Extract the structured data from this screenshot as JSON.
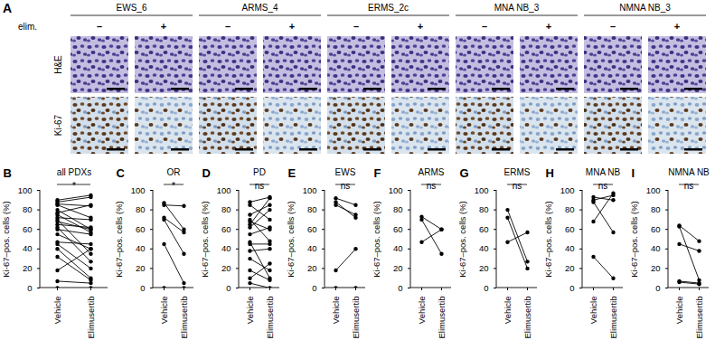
{
  "panel_a": {
    "label": "A",
    "treatment_label": "elim.",
    "treatments": [
      "–",
      "+"
    ],
    "samples": [
      "EWS_6",
      "ARMS_4",
      "ERMS_2c",
      "MNA NB_3",
      "NMNA NB_3"
    ],
    "stains": [
      "H&E",
      "Ki-67"
    ]
  },
  "chart_data": [
    {
      "type": "line",
      "panel": "B",
      "title": "all PDXs",
      "annotation": "*",
      "categories": [
        "Vehicle",
        "Elimusertib"
      ],
      "ylabel": "Ki-67–pos. cells (%)",
      "ylim": [
        0,
        100
      ],
      "yticks": [
        0,
        20,
        40,
        60,
        80,
        100
      ],
      "color": "#000000",
      "marker": "circle",
      "series": [
        {
          "values": [
            90,
            95
          ]
        },
        {
          "values": [
            88,
            93
          ]
        },
        {
          "values": [
            86,
            84
          ]
        },
        {
          "values": [
            85,
            72
          ]
        },
        {
          "values": [
            80,
            60
          ]
        },
        {
          "values": [
            77,
            85
          ]
        },
        {
          "values": [
            75,
            57
          ]
        },
        {
          "values": [
            72,
            70
          ]
        },
        {
          "values": [
            70,
            35
          ]
        },
        {
          "values": [
            68,
            60
          ]
        },
        {
          "values": [
            65,
            62
          ]
        },
        {
          "values": [
            62,
            27
          ]
        },
        {
          "values": [
            60,
            55
          ]
        },
        {
          "values": [
            55,
            40
          ]
        },
        {
          "values": [
            47,
            45
          ]
        },
        {
          "values": [
            45,
            20
          ]
        },
        {
          "values": [
            40,
            10
          ]
        },
        {
          "values": [
            32,
            8
          ]
        },
        {
          "values": [
            18,
            40
          ]
        },
        {
          "values": [
            7,
            5
          ]
        },
        {
          "values": [
            0,
            0
          ]
        }
      ]
    },
    {
      "type": "line",
      "panel": "C",
      "title": "OR",
      "annotation": "*",
      "categories": [
        "Vehicle",
        "Elimusertib"
      ],
      "ylabel": "Ki-67–pos. cells (%)",
      "ylim": [
        0,
        100
      ],
      "yticks": [
        0,
        20,
        40,
        60,
        80,
        100
      ],
      "color": "#000000",
      "marker": "circle",
      "series": [
        {
          "values": [
            85,
            84
          ]
        },
        {
          "values": [
            87,
            60
          ]
        },
        {
          "values": [
            72,
            57
          ]
        },
        {
          "values": [
            70,
            35
          ]
        },
        {
          "values": [
            45,
            5
          ]
        },
        {
          "values": [
            0,
            0
          ]
        }
      ]
    },
    {
      "type": "line",
      "panel": "D",
      "title": "PD",
      "annotation": "ns",
      "categories": [
        "Vehicle",
        "Elimusertib"
      ],
      "ylabel": "Ki-67–pos. cells (%)",
      "ylim": [
        0,
        100
      ],
      "yticks": [
        0,
        20,
        40,
        60,
        80,
        100
      ],
      "color": "#000000",
      "marker": "circle",
      "series": [
        {
          "values": [
            88,
            93
          ]
        },
        {
          "values": [
            85,
            70
          ]
        },
        {
          "values": [
            75,
            85
          ]
        },
        {
          "values": [
            70,
            48
          ]
        },
        {
          "values": [
            68,
            60
          ]
        },
        {
          "values": [
            65,
            92
          ]
        },
        {
          "values": [
            62,
            80
          ]
        },
        {
          "values": [
            55,
            62
          ]
        },
        {
          "values": [
            47,
            10
          ]
        },
        {
          "values": [
            45,
            45
          ]
        },
        {
          "values": [
            38,
            40
          ]
        },
        {
          "values": [
            30,
            18
          ]
        },
        {
          "values": [
            18,
            8
          ]
        },
        {
          "values": [
            10,
            25
          ]
        },
        {
          "values": [
            5,
            0
          ]
        }
      ]
    },
    {
      "type": "line",
      "panel": "E",
      "title": "EWS",
      "annotation": "ns",
      "categories": [
        "Vehicle",
        "Elimusertib"
      ],
      "ylabel": "Ki-67–pos. cells (%)",
      "ylim": [
        0,
        100
      ],
      "yticks": [
        0,
        20,
        40,
        60,
        80,
        100
      ],
      "color": "#000000",
      "marker": "circle",
      "series": [
        {
          "values": [
            92,
            85
          ]
        },
        {
          "values": [
            88,
            72
          ]
        },
        {
          "values": [
            85,
            75
          ]
        },
        {
          "values": [
            18,
            40
          ]
        },
        {
          "values": [
            0,
            0
          ]
        }
      ]
    },
    {
      "type": "line",
      "panel": "F",
      "title": "ARMS",
      "annotation": "ns",
      "categories": [
        "Vehicle",
        "Elimusertib"
      ],
      "ylabel": "Ki-67–pos. cells (%)",
      "ylim": [
        0,
        100
      ],
      "yticks": [
        0,
        20,
        40,
        60,
        80,
        100
      ],
      "color": "#000000",
      "marker": "circle",
      "series": [
        {
          "values": [
            73,
            60
          ]
        },
        {
          "values": [
            70,
            35
          ]
        },
        {
          "values": [
            47,
            60
          ]
        }
      ]
    },
    {
      "type": "line",
      "panel": "G",
      "title": "ERMS",
      "annotation": "ns",
      "categories": [
        "Vehicle",
        "Elimusertib"
      ],
      "ylabel": "Ki-67–pos. cells (%)",
      "ylim": [
        0,
        100
      ],
      "yticks": [
        0,
        20,
        40,
        60,
        80,
        100
      ],
      "color": "#000000",
      "marker": "circle",
      "series": [
        {
          "values": [
            80,
            27
          ]
        },
        {
          "values": [
            72,
            20
          ]
        },
        {
          "values": [
            47,
            57
          ]
        }
      ]
    },
    {
      "type": "line",
      "panel": "H",
      "title": "MNA NB",
      "annotation": "ns",
      "categories": [
        "Vehicle",
        "Elimusertib"
      ],
      "ylabel": "Ki-67–pos. cells (%)",
      "ylim": [
        0,
        100
      ],
      "yticks": [
        0,
        20,
        40,
        60,
        80,
        100
      ],
      "color": "#000000",
      "marker": "circle",
      "series": [
        {
          "values": [
            93,
            90
          ]
        },
        {
          "values": [
            90,
            95
          ]
        },
        {
          "values": [
            88,
            57
          ]
        },
        {
          "values": [
            68,
            97
          ]
        },
        {
          "values": [
            32,
            10
          ]
        }
      ]
    },
    {
      "type": "line",
      "panel": "I",
      "title": "NMNA NB",
      "annotation": "ns",
      "categories": [
        "Vehicle",
        "Elimusertib"
      ],
      "ylabel": "Ki-67–pos. cells (%)",
      "ylim": [
        0,
        100
      ],
      "yticks": [
        0,
        20,
        40,
        60,
        80,
        100
      ],
      "color": "#000000",
      "marker": "circle",
      "series": [
        {
          "values": [
            64,
            48
          ]
        },
        {
          "values": [
            63,
            8
          ]
        },
        {
          "values": [
            45,
            38
          ]
        },
        {
          "values": [
            7,
            5
          ]
        },
        {
          "values": [
            6,
            4
          ]
        }
      ]
    }
  ]
}
